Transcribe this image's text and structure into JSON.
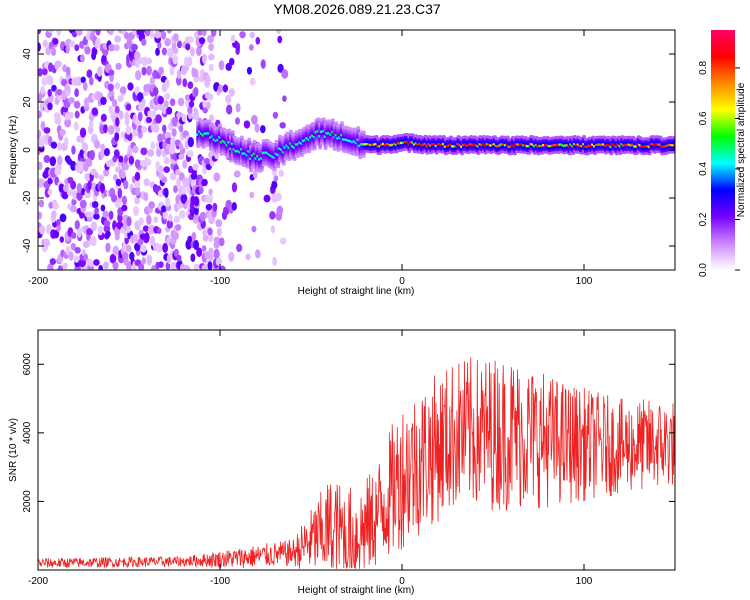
{
  "figure": {
    "title": "YM08.2026.089.21.23.C37"
  },
  "chart_data": [
    {
      "type": "heatmap",
      "xlabel": "Height of straight line (km)",
      "ylabel": "Frequency (Hz)",
      "xlim": [
        -200,
        150
      ],
      "ylim": [
        -50,
        50
      ],
      "xticks": [
        -200,
        -100,
        0,
        100
      ],
      "yticks": [
        -40,
        -20,
        0,
        20,
        40
      ],
      "ridge": [
        {
          "x": -110,
          "y": 8
        },
        {
          "x": -100,
          "y": 4
        },
        {
          "x": -90,
          "y": 0
        },
        {
          "x": -80,
          "y": -3
        },
        {
          "x": -70,
          "y": -2
        },
        {
          "x": -60,
          "y": 2
        },
        {
          "x": -45,
          "y": 7
        },
        {
          "x": -35,
          "y": 6
        },
        {
          "x": -25,
          "y": 3
        },
        {
          "x": -15,
          "y": 2
        },
        {
          "x": 0,
          "y": 3
        },
        {
          "x": 20,
          "y": 2
        },
        {
          "x": 60,
          "y": 2
        },
        {
          "x": 100,
          "y": 2
        },
        {
          "x": 150,
          "y": 2
        }
      ],
      "colorbar": {
        "label": "Normalized spectral amplitude",
        "ticks": [
          "0.0",
          "0.2",
          "0.4",
          "0.6",
          "0.8"
        ],
        "tick_values": [
          0.0,
          0.2,
          0.4,
          0.6,
          0.8
        ],
        "range": [
          0,
          0.95
        ],
        "stops": [
          "#ffffff",
          "#cc88ff",
          "#7700ff",
          "#0000ff",
          "#00ffff",
          "#00ff00",
          "#ffff00",
          "#ff8800",
          "#ff0000",
          "#ff0066"
        ]
      }
    },
    {
      "type": "line",
      "xlabel": "Height of straight line (km)",
      "ylabel": "SNR (10 * v/v)",
      "xlim": [
        -200,
        150
      ],
      "ylim": [
        0,
        7000
      ],
      "xticks": [
        -200,
        -100,
        0,
        100
      ],
      "yticks": [
        2000,
        4000,
        6000
      ],
      "color": "#ee2222",
      "envelope": [
        {
          "x": -200,
          "base": 200,
          "amp": 150
        },
        {
          "x": -120,
          "base": 250,
          "amp": 150
        },
        {
          "x": -90,
          "base": 350,
          "amp": 300
        },
        {
          "x": -60,
          "base": 500,
          "amp": 400
        },
        {
          "x": -40,
          "base": 1200,
          "amp": 1500
        },
        {
          "x": -25,
          "base": 1000,
          "amp": 1400
        },
        {
          "x": -15,
          "base": 1500,
          "amp": 1500
        },
        {
          "x": 0,
          "base": 2800,
          "amp": 2200
        },
        {
          "x": 30,
          "base": 4000,
          "amp": 2200
        },
        {
          "x": 60,
          "base": 4000,
          "amp": 2300
        },
        {
          "x": 90,
          "base": 3700,
          "amp": 1800
        },
        {
          "x": 120,
          "base": 3600,
          "amp": 1400
        },
        {
          "x": 150,
          "base": 3700,
          "amp": 1300
        }
      ]
    }
  ]
}
